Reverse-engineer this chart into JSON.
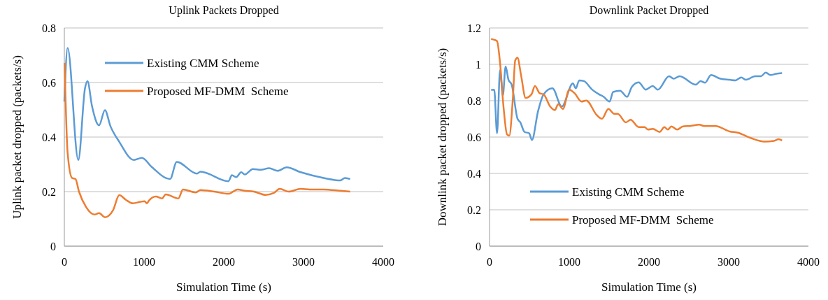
{
  "chart_data": [
    {
      "type": "line",
      "title": "Uplink  Packets Dropped",
      "xlabel": "Simulation Time (s)",
      "ylabel": "Uplink packet dropped  (packets/s)",
      "xlim": [
        0,
        4000
      ],
      "xticks": [
        0,
        1000,
        2000,
        3000,
        4000
      ],
      "ylim": [
        0,
        0.8
      ],
      "yticks": [
        0,
        0.2,
        0.4,
        0.6,
        0.8
      ],
      "grid": "y",
      "legend": "top",
      "marker": "none",
      "line_style": "solid",
      "series": [
        {
          "name": "Existing CMM Scheme",
          "color": "#5b9bd5",
          "x": [
            0,
            41,
            175,
            260,
            290,
            348,
            436,
            509,
            578,
            684,
            873,
            974,
            1094,
            1326,
            1410,
            1664,
            1707,
            2058,
            2102,
            2156,
            2219,
            2263,
            2365,
            2465,
            2570,
            2673,
            2789,
            2965,
            3254,
            3462,
            3520,
            3585
          ],
          "values": [
            0.53,
            0.727,
            0.316,
            0.58,
            0.605,
            0.512,
            0.443,
            0.499,
            0.44,
            0.385,
            0.316,
            0.324,
            0.291,
            0.246,
            0.309,
            0.266,
            0.273,
            0.238,
            0.26,
            0.253,
            0.271,
            0.263,
            0.283,
            0.28,
            0.286,
            0.276,
            0.289,
            0.271,
            0.25,
            0.241,
            0.25,
            0.246
          ]
        },
        {
          "name": "Proposed MF-DMM  Scheme",
          "color": "#ed7d31",
          "x": [
            3,
            41,
            96,
            140,
            184,
            272,
            377,
            436,
            509,
            611,
            689,
            772,
            860,
            947,
            1006,
            1035,
            1061,
            1149,
            1225,
            1272,
            1430,
            1488,
            1649,
            1707,
            1882,
            2058,
            2175,
            2263,
            2377,
            2526,
            2628,
            2702,
            2816,
            2965,
            3079,
            3254,
            3462,
            3585
          ],
          "values": [
            0.672,
            0.343,
            0.25,
            0.246,
            0.2,
            0.144,
            0.116,
            0.121,
            0.106,
            0.132,
            0.187,
            0.17,
            0.157,
            0.162,
            0.165,
            0.157,
            0.167,
            0.182,
            0.175,
            0.19,
            0.175,
            0.208,
            0.197,
            0.206,
            0.2,
            0.192,
            0.208,
            0.203,
            0.2,
            0.188,
            0.195,
            0.21,
            0.2,
            0.21,
            0.208,
            0.208,
            0.203,
            0.2
          ]
        }
      ]
    },
    {
      "type": "line",
      "title": "Downlink Packet Dropped",
      "xlabel": "Simulation Time (s)",
      "ylabel": "Downlink packet dropped (packets/s)",
      "xlim": [
        0,
        4000
      ],
      "xticks": [
        0,
        1000,
        2000,
        3000,
        4000
      ],
      "ylim": [
        0,
        1.2
      ],
      "yticks": [
        0,
        0.2,
        0.4,
        0.6,
        0.8,
        1,
        1.2
      ],
      "grid": "y",
      "legend": "bottom",
      "marker": "none",
      "line_style": "solid",
      "series": [
        {
          "name": "Existing CMM Scheme",
          "color": "#5b9bd5",
          "x": [
            20,
            59,
            94,
            132,
            167,
            202,
            237,
            278,
            351,
            386,
            439,
            497,
            532,
            608,
            678,
            789,
            906,
            1046,
            1082,
            1125,
            1184,
            1287,
            1374,
            1433,
            1506,
            1550,
            1637,
            1725,
            1784,
            1871,
            1959,
            2047,
            2111,
            2252,
            2310,
            2383,
            2588,
            2646,
            2704,
            2778,
            2895,
            3012,
            3085,
            3158,
            3216,
            3333,
            3406,
            3465,
            3523,
            3596,
            3669
          ],
          "values": [
            0.86,
            0.861,
            0.621,
            0.968,
            0.828,
            0.988,
            0.916,
            0.888,
            0.701,
            0.681,
            0.628,
            0.621,
            0.584,
            0.741,
            0.835,
            0.868,
            0.768,
            0.895,
            0.868,
            0.912,
            0.908,
            0.861,
            0.835,
            0.821,
            0.795,
            0.848,
            0.855,
            0.821,
            0.875,
            0.901,
            0.861,
            0.881,
            0.861,
            0.935,
            0.921,
            0.935,
            0.888,
            0.908,
            0.899,
            0.941,
            0.921,
            0.915,
            0.912,
            0.928,
            0.915,
            0.935,
            0.935,
            0.955,
            0.941,
            0.948,
            0.952
          ]
        },
        {
          "name": "Proposed MF-DMM  Scheme",
          "color": "#ed7d31",
          "x": [
            20,
            59,
            94,
            132,
            175,
            219,
            248,
            292,
            322,
            351,
            395,
            453,
            526,
            570,
            629,
            678,
            760,
            819,
            862,
            921,
            1000,
            1067,
            1155,
            1213,
            1345,
            1410,
            1491,
            1564,
            1608,
            1711,
            1769,
            1871,
            1944,
            1988,
            2047,
            2135,
            2193,
            2237,
            2281,
            2354,
            2427,
            2515,
            2632,
            2690,
            2836,
            3012,
            3114,
            3275,
            3450,
            3567,
            3626,
            3669
          ],
          "values": [
            1.14,
            1.135,
            1.128,
            1.008,
            0.768,
            0.615,
            0.608,
            0.808,
            1.021,
            1.037,
            0.941,
            0.815,
            0.835,
            0.881,
            0.841,
            0.835,
            0.768,
            0.748,
            0.781,
            0.755,
            0.861,
            0.841,
            0.795,
            0.801,
            0.721,
            0.701,
            0.755,
            0.728,
            0.728,
            0.681,
            0.695,
            0.655,
            0.655,
            0.641,
            0.645,
            0.628,
            0.655,
            0.641,
            0.659,
            0.641,
            0.659,
            0.661,
            0.668,
            0.661,
            0.661,
            0.631,
            0.624,
            0.595,
            0.575,
            0.579,
            0.588,
            0.581
          ]
        }
      ]
    }
  ]
}
